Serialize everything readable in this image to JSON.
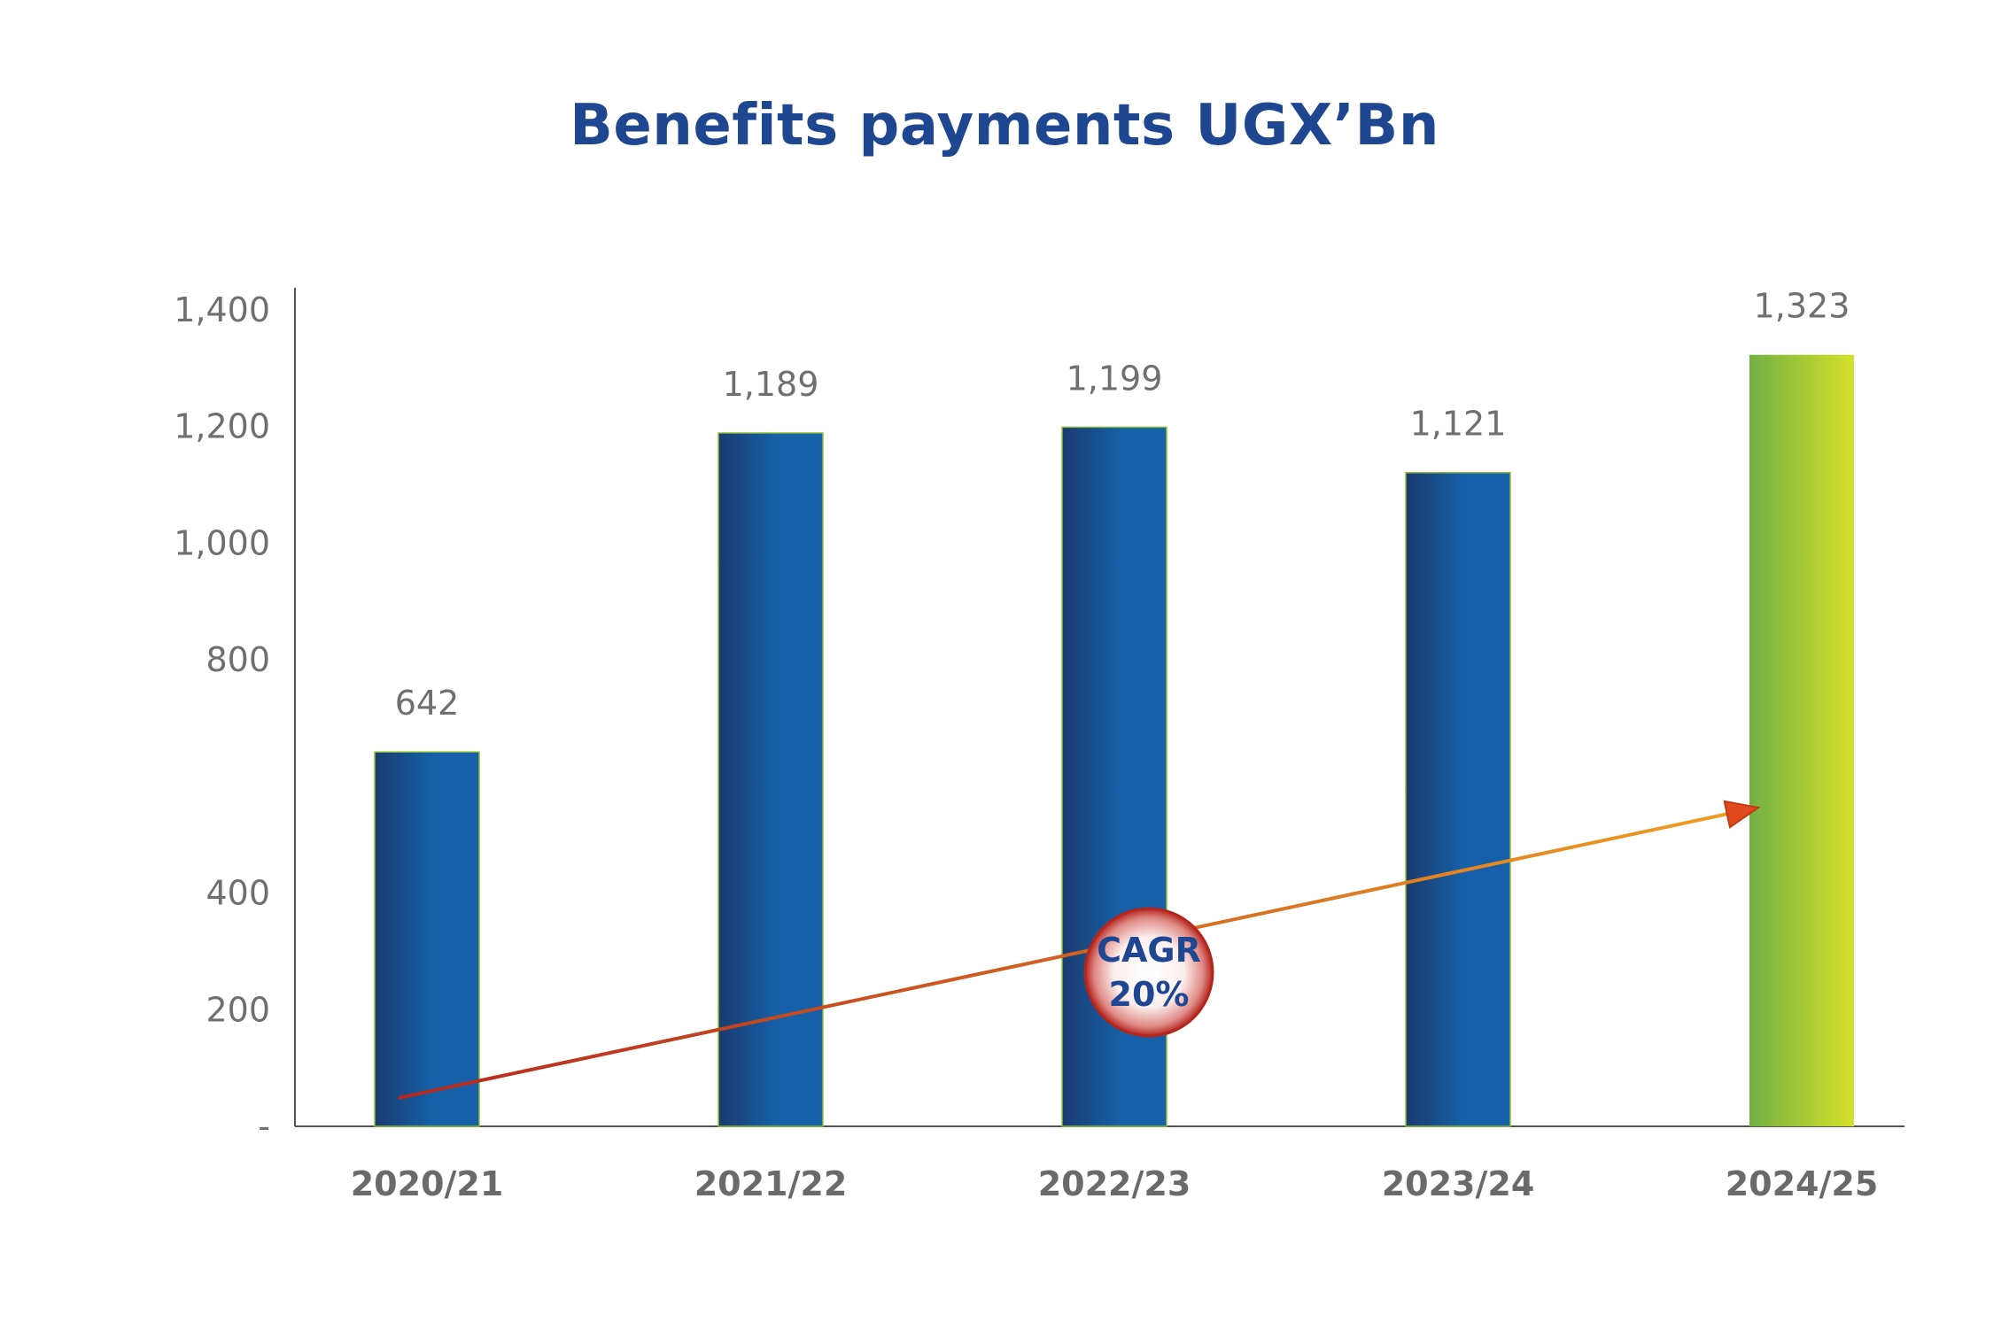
{
  "chart_data": {
    "type": "bar",
    "title": "Benefits payments UGX’Bn",
    "categories": [
      "2020/21",
      "2021/22",
      "2022/23",
      "2023/24",
      "2024/25"
    ],
    "values": [
      642,
      1189,
      1199,
      1121,
      1323
    ],
    "data_labels": [
      "642",
      "1,189",
      "1,199",
      "1,121",
      "1,323"
    ],
    "y_ticks": [
      {
        "value": 0,
        "label": "-"
      },
      {
        "value": 200,
        "label": "200"
      },
      {
        "value": 400,
        "label": "400"
      },
      {
        "value": 800,
        "label": "800"
      },
      {
        "value": 1000,
        "label": "1,000"
      },
      {
        "value": 1200,
        "label": "1,200"
      },
      {
        "value": 1400,
        "label": "1,400"
      }
    ],
    "ylim": [
      0,
      1400
    ],
    "grid": false,
    "highlight_category": "2024/25",
    "colors": {
      "bar_dark": "#1b3b6f",
      "bar_light": "#1560a8",
      "highlight_left": "#72b043",
      "highlight_right": "#d6e12a",
      "trend_start": "#b5281f",
      "trend_end": "#f0a023",
      "badge_text": "#1f4690",
      "title": "#1f4690"
    },
    "annotation": {
      "line1": "CAGR",
      "line2": "20%"
    }
  }
}
